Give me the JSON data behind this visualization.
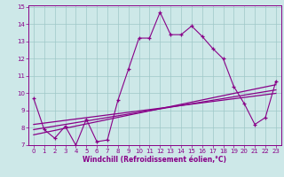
{
  "xlabel": "Windchill (Refroidissement éolien,°C)",
  "x_values": [
    0,
    1,
    2,
    3,
    4,
    5,
    6,
    7,
    8,
    9,
    10,
    11,
    12,
    13,
    14,
    15,
    16,
    17,
    18,
    19,
    20,
    21,
    22,
    23
  ],
  "y_main": [
    9.7,
    7.9,
    7.4,
    8.1,
    7.0,
    8.5,
    7.2,
    7.3,
    9.6,
    11.4,
    13.2,
    13.2,
    14.7,
    13.4,
    13.4,
    13.9,
    13.3,
    12.6,
    12.0,
    10.4,
    9.4,
    8.2,
    8.6,
    10.7
  ],
  "trend1_start": 7.6,
  "trend1_end": 10.5,
  "trend2_start": 7.9,
  "trend2_end": 10.2,
  "trend3_start": 8.2,
  "trend3_end": 10.0,
  "bg_color": "#cde8e8",
  "line_color": "#880088",
  "grid_color": "#9ec8c8",
  "ylim": [
    7,
    15
  ],
  "xlim": [
    -0.5,
    23.5
  ],
  "yticks": [
    7,
    8,
    9,
    10,
    11,
    12,
    13,
    14,
    15
  ],
  "xticks": [
    0,
    1,
    2,
    3,
    4,
    5,
    6,
    7,
    8,
    9,
    10,
    11,
    12,
    13,
    14,
    15,
    16,
    17,
    18,
    19,
    20,
    21,
    22,
    23
  ]
}
